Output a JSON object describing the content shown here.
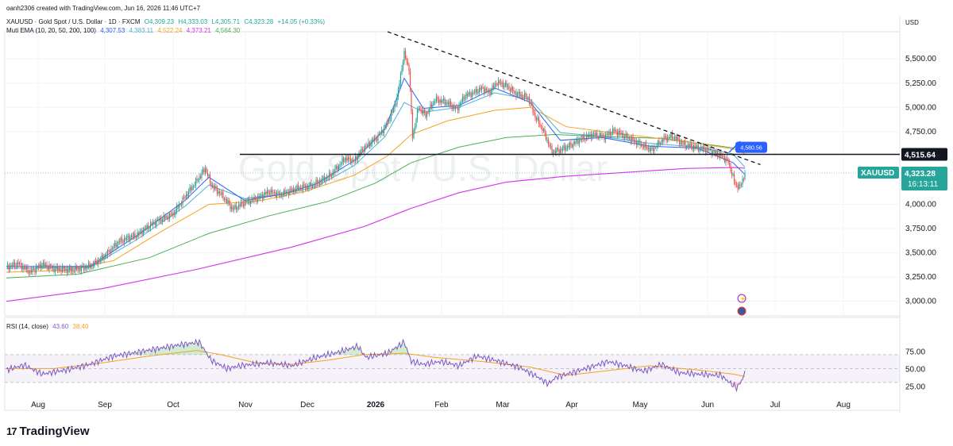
{
  "header": {
    "creator": "oanh2306 created with TradingView.com, Jun 16, 2026 11:46 UTC+7",
    "symbol_line": "XAUUSD · Gold Spot / U.S. Dollar · 1D · FXCM",
    "ohlc": {
      "o": "O4,309.23",
      "h": "H4,333.03",
      "l": "L4,305.71",
      "c": "C4,323.28",
      "chg": "+14.05 (+0.33%)"
    },
    "ema_title": "Muti EMA (10, 20, 50, 200, 100)",
    "ema_values": [
      "4,307.53",
      "4,383.11",
      "4,522.24",
      "4,373.21",
      "4,564.30"
    ],
    "rsi_title": "RSI (14, close)",
    "rsi_values": [
      "43.60",
      "38.40"
    ]
  },
  "watermark": "Gold Spot / U.S. Dollar",
  "brand": "TradingView",
  "colors": {
    "up": "#26a69a",
    "down": "#ef5350",
    "ema10": "#2962ff",
    "ema20": "#4fb0d4",
    "ema50": "#f7a21b",
    "ema200": "#d433ec",
    "ema100": "#4caf50",
    "rsi": "#7e57c2",
    "rsi_ma": "#f7a21b",
    "accent_blue": "#2962ff"
  },
  "chart_data": {
    "type": "candlestick",
    "currency": "USD",
    "y_ticks": [
      "5,500.00",
      "5,250.00",
      "5,000.00",
      "4,750.00",
      "4,000.00",
      "3,750.00",
      "3,500.00",
      "3,250.00",
      "3,000.00"
    ],
    "x_ticks": [
      "Aug",
      "Sep",
      "Oct",
      "Nov",
      "Dec",
      "2026",
      "Feb",
      "Mar",
      "Apr",
      "May",
      "Jun",
      "Jul",
      "Aug"
    ],
    "ylim": [
      2850,
      5780
    ],
    "horizontal_level": {
      "value": 4515.64,
      "label": "4,515.64"
    },
    "trendline_label": {
      "value": 4580,
      "label": "4,580.56"
    },
    "last_price": {
      "symbol": "XAUUSD",
      "price": "4,323.28",
      "countdown": "16:13:11",
      "value": 4323.28
    },
    "close_path": [
      [
        0,
        3350
      ],
      [
        10,
        3390
      ],
      [
        20,
        3300
      ],
      [
        30,
        3380
      ],
      [
        40,
        3335
      ],
      [
        55,
        3320
      ],
      [
        70,
        3360
      ],
      [
        80,
        3440
      ],
      [
        95,
        3620
      ],
      [
        110,
        3690
      ],
      [
        125,
        3820
      ],
      [
        140,
        3900
      ],
      [
        150,
        4080
      ],
      [
        162,
        4280
      ],
      [
        167,
        4370
      ],
      [
        172,
        4200
      ],
      [
        182,
        4080
      ],
      [
        190,
        3950
      ],
      [
        200,
        4020
      ],
      [
        212,
        4070
      ],
      [
        220,
        4130
      ],
      [
        230,
        4100
      ],
      [
        245,
        4170
      ],
      [
        255,
        4190
      ],
      [
        262,
        4230
      ],
      [
        272,
        4300
      ],
      [
        284,
        4470
      ],
      [
        292,
        4450
      ],
      [
        300,
        4580
      ],
      [
        312,
        4700
      ],
      [
        318,
        4800
      ],
      [
        324,
        4950
      ],
      [
        328,
        5100
      ],
      [
        332,
        5420
      ],
      [
        334,
        5550
      ],
      [
        338,
        5400
      ],
      [
        341,
        4700
      ],
      [
        346,
        5000
      ],
      [
        352,
        4920
      ],
      [
        360,
        5080
      ],
      [
        370,
        5050
      ],
      [
        378,
        4980
      ],
      [
        385,
        5120
      ],
      [
        392,
        5150
      ],
      [
        400,
        5200
      ],
      [
        405,
        5150
      ],
      [
        412,
        5260
      ],
      [
        420,
        5220
      ],
      [
        428,
        5140
      ],
      [
        438,
        5100
      ],
      [
        444,
        4900
      ],
      [
        450,
        4780
      ],
      [
        458,
        4540
      ],
      [
        465,
        4560
      ],
      [
        472,
        4600
      ],
      [
        482,
        4670
      ],
      [
        492,
        4720
      ],
      [
        502,
        4700
      ],
      [
        510,
        4760
      ],
      [
        520,
        4700
      ],
      [
        532,
        4620
      ],
      [
        542,
        4560
      ],
      [
        552,
        4680
      ],
      [
        560,
        4700
      ],
      [
        568,
        4620
      ],
      [
        578,
        4590
      ],
      [
        590,
        4560
      ],
      [
        600,
        4500
      ],
      [
        606,
        4440
      ],
      [
        612,
        4200
      ],
      [
        616,
        4180
      ],
      [
        620,
        4323
      ]
    ],
    "ema10_path": [
      [
        0,
        3360
      ],
      [
        30,
        3360
      ],
      [
        70,
        3360
      ],
      [
        110,
        3680
      ],
      [
        150,
        4040
      ],
      [
        170,
        4280
      ],
      [
        200,
        4040
      ],
      [
        230,
        4100
      ],
      [
        260,
        4210
      ],
      [
        292,
        4450
      ],
      [
        318,
        4780
      ],
      [
        334,
        5300
      ],
      [
        350,
        4990
      ],
      [
        380,
        5020
      ],
      [
        410,
        5200
      ],
      [
        440,
        5050
      ],
      [
        465,
        4660
      ],
      [
        500,
        4690
      ],
      [
        540,
        4600
      ],
      [
        580,
        4580
      ],
      [
        610,
        4430
      ],
      [
        620,
        4308
      ]
    ],
    "ema20_path": [
      [
        0,
        3340
      ],
      [
        30,
        3345
      ],
      [
        70,
        3350
      ],
      [
        110,
        3640
      ],
      [
        150,
        3980
      ],
      [
        170,
        4200
      ],
      [
        200,
        4060
      ],
      [
        230,
        4100
      ],
      [
        260,
        4180
      ],
      [
        292,
        4400
      ],
      [
        318,
        4700
      ],
      [
        334,
        5050
      ],
      [
        350,
        4950
      ],
      [
        380,
        5000
      ],
      [
        410,
        5150
      ],
      [
        440,
        5080
      ],
      [
        465,
        4740
      ],
      [
        500,
        4700
      ],
      [
        540,
        4630
      ],
      [
        580,
        4590
      ],
      [
        610,
        4520
      ],
      [
        620,
        4383
      ]
    ],
    "ema50_path": [
      [
        0,
        3300
      ],
      [
        50,
        3320
      ],
      [
        90,
        3420
      ],
      [
        130,
        3720
      ],
      [
        170,
        4000
      ],
      [
        210,
        4030
      ],
      [
        250,
        4130
      ],
      [
        292,
        4300
      ],
      [
        320,
        4500
      ],
      [
        340,
        4720
      ],
      [
        370,
        4860
      ],
      [
        410,
        4970
      ],
      [
        440,
        5000
      ],
      [
        470,
        4800
      ],
      [
        520,
        4720
      ],
      [
        570,
        4650
      ],
      [
        610,
        4570
      ],
      [
        620,
        4522
      ]
    ],
    "ema100_path": [
      [
        0,
        3240
      ],
      [
        60,
        3280
      ],
      [
        120,
        3450
      ],
      [
        170,
        3700
      ],
      [
        220,
        3880
      ],
      [
        270,
        4030
      ],
      [
        310,
        4220
      ],
      [
        340,
        4430
      ],
      [
        380,
        4590
      ],
      [
        420,
        4690
      ],
      [
        460,
        4720
      ],
      [
        500,
        4700
      ],
      [
        550,
        4680
      ],
      [
        600,
        4600
      ],
      [
        620,
        4564
      ]
    ],
    "ema200_path": [
      [
        0,
        3000
      ],
      [
        80,
        3130
      ],
      [
        160,
        3330
      ],
      [
        240,
        3560
      ],
      [
        300,
        3770
      ],
      [
        340,
        3960
      ],
      [
        380,
        4120
      ],
      [
        420,
        4230
      ],
      [
        470,
        4290
      ],
      [
        520,
        4330
      ],
      [
        570,
        4370
      ],
      [
        610,
        4380
      ],
      [
        620,
        4373
      ]
    ],
    "trendline": {
      "x0": 320,
      "y0": 5780,
      "x1": 633,
      "y1": 4410
    },
    "rsi": {
      "ylim": [
        15,
        95
      ],
      "ticks": [
        "75.00",
        "50.00",
        "25.00"
      ],
      "overbought": 70,
      "oversold": 30,
      "path": [
        [
          0,
          48
        ],
        [
          15,
          55
        ],
        [
          30,
          42
        ],
        [
          50,
          48
        ],
        [
          70,
          56
        ],
        [
          90,
          68
        ],
        [
          105,
          72
        ],
        [
          125,
          78
        ],
        [
          145,
          84
        ],
        [
          162,
          88
        ],
        [
          172,
          62
        ],
        [
          185,
          50
        ],
        [
          200,
          55
        ],
        [
          220,
          58
        ],
        [
          240,
          54
        ],
        [
          260,
          66
        ],
        [
          280,
          74
        ],
        [
          295,
          82
        ],
        [
          302,
          66
        ],
        [
          320,
          72
        ],
        [
          334,
          88
        ],
        [
          340,
          60
        ],
        [
          350,
          56
        ],
        [
          365,
          60
        ],
        [
          380,
          54
        ],
        [
          395,
          68
        ],
        [
          410,
          62
        ],
        [
          430,
          52
        ],
        [
          444,
          40
        ],
        [
          455,
          28
        ],
        [
          462,
          38
        ],
        [
          475,
          44
        ],
        [
          490,
          52
        ],
        [
          505,
          60
        ],
        [
          520,
          54
        ],
        [
          535,
          46
        ],
        [
          550,
          56
        ],
        [
          565,
          44
        ],
        [
          580,
          42
        ],
        [
          600,
          40
        ],
        [
          607,
          30
        ],
        [
          613,
          22
        ],
        [
          617,
          32
        ],
        [
          620,
          43.6
        ]
      ],
      "ma_path": [
        [
          0,
          50
        ],
        [
          40,
          50
        ],
        [
          80,
          58
        ],
        [
          120,
          68
        ],
        [
          160,
          76
        ],
        [
          180,
          70
        ],
        [
          210,
          58
        ],
        [
          240,
          56
        ],
        [
          270,
          62
        ],
        [
          300,
          70
        ],
        [
          334,
          72
        ],
        [
          360,
          66
        ],
        [
          400,
          60
        ],
        [
          440,
          52
        ],
        [
          470,
          40
        ],
        [
          500,
          46
        ],
        [
          540,
          54
        ],
        [
          580,
          48
        ],
        [
          610,
          42
        ],
        [
          620,
          38.4
        ]
      ]
    }
  }
}
